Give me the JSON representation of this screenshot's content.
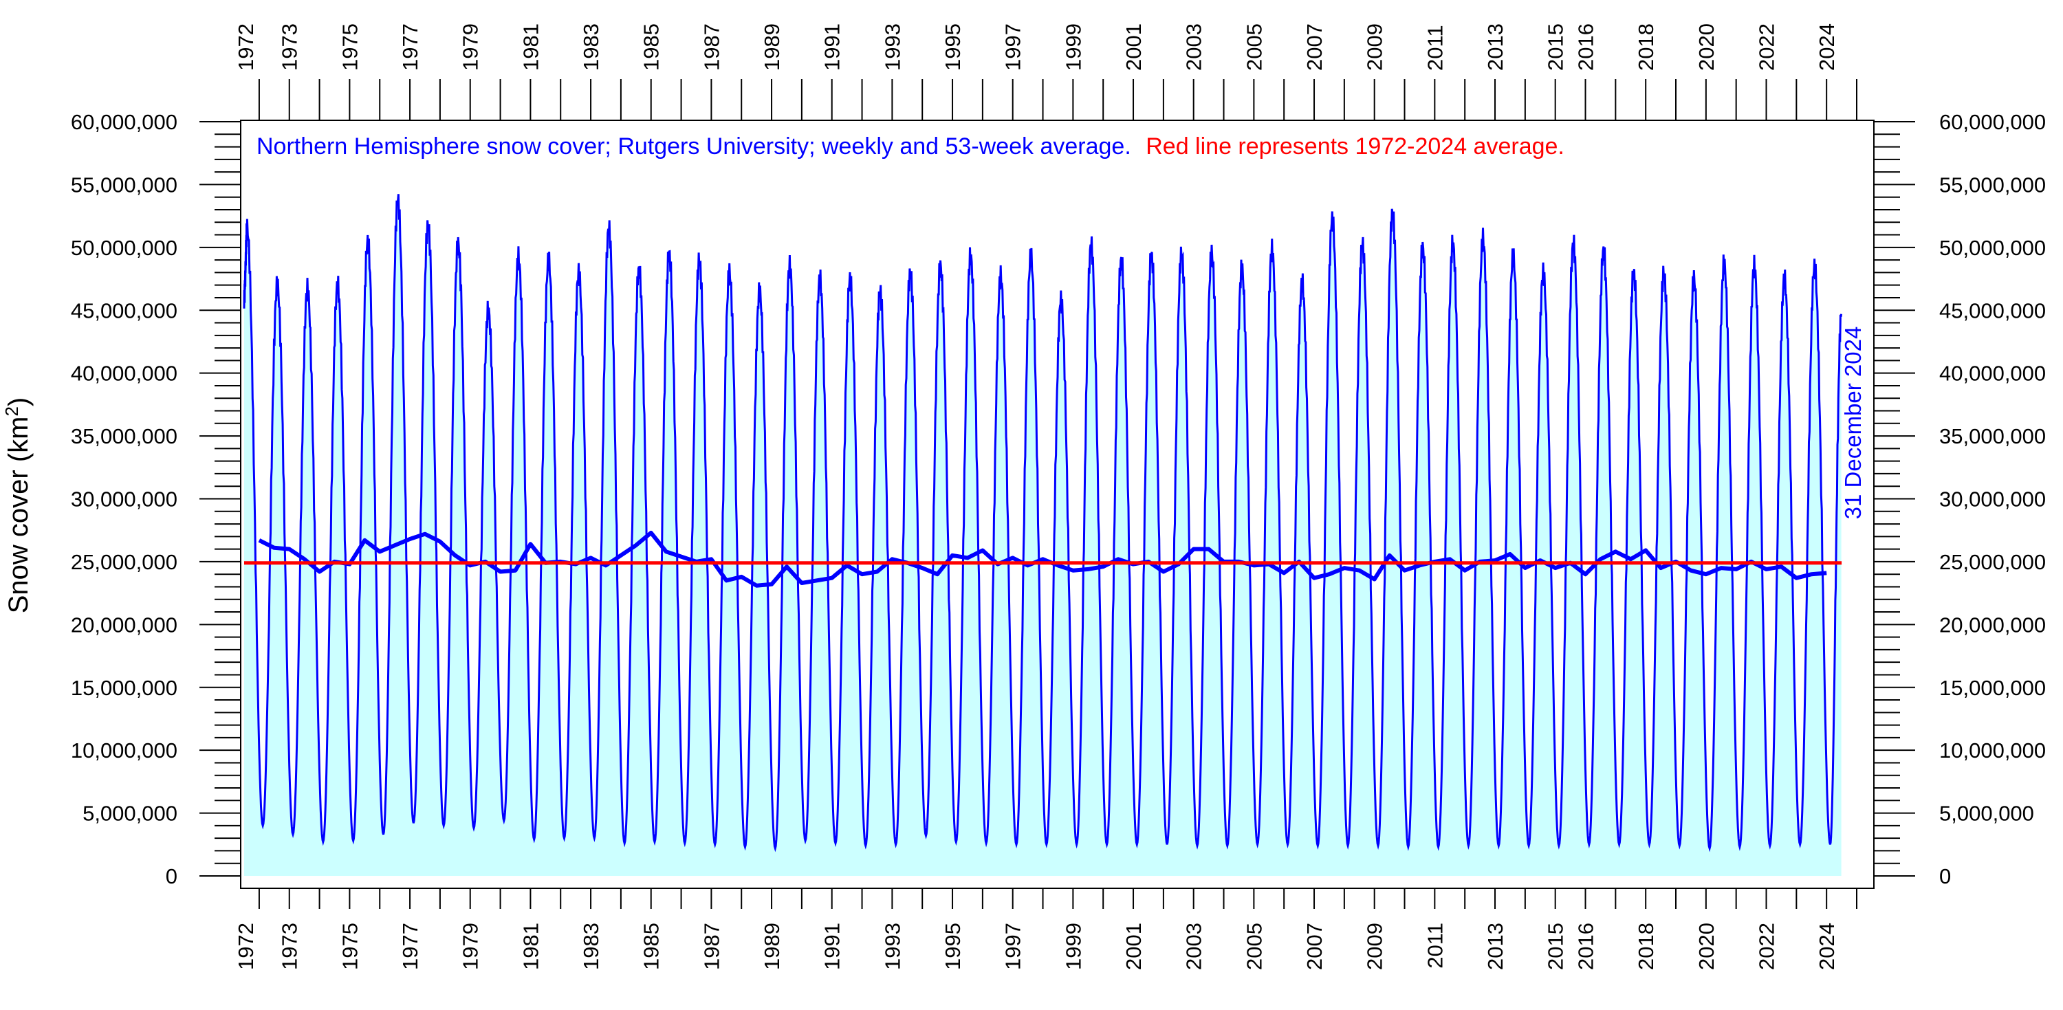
{
  "chart_data": {
    "type": "area",
    "title": "Northern Hemisphere snow cover; Rutgers University; weekly and 53-week average.",
    "subtitle": "Red line represents 1972-2024 average.",
    "ylabel": "Snow cover (km",
    "ylabel_sup": "2",
    "ylabel_close": ")",
    "end_annotation": "31 December 2024",
    "ylim": [
      0,
      60000000
    ],
    "y_tick_labels": [
      "0",
      "5,000,000",
      "10,000,000",
      "15,000,000",
      "20,000,000",
      "25,000,000",
      "30,000,000",
      "35,000,000",
      "40,000,000",
      "45,000,000",
      "50,000,000",
      "55,000,000",
      "60,000,000"
    ],
    "xlim": [
      1972.0,
      2025.5
    ],
    "x_tick_labels": [
      {
        "year": 1972.05,
        "label": "1972"
      },
      {
        "year": 1973.5,
        "label": "1973"
      },
      {
        "year": 1975.5,
        "label": "1975"
      },
      {
        "year": 1977.5,
        "label": "1977"
      },
      {
        "year": 1979.5,
        "label": "1979"
      },
      {
        "year": 1981.5,
        "label": "1981"
      },
      {
        "year": 1983.5,
        "label": "1983"
      },
      {
        "year": 1985.5,
        "label": "1985"
      },
      {
        "year": 1987.5,
        "label": "1987"
      },
      {
        "year": 1989.5,
        "label": "1989"
      },
      {
        "year": 1991.5,
        "label": "1991"
      },
      {
        "year": 1993.5,
        "label": "1993"
      },
      {
        "year": 1995.5,
        "label": "1995"
      },
      {
        "year": 1997.5,
        "label": "1997"
      },
      {
        "year": 1999.5,
        "label": "1999"
      },
      {
        "year": 2001.5,
        "label": "2001"
      },
      {
        "year": 2003.5,
        "label": "2003"
      },
      {
        "year": 2005.5,
        "label": "2005"
      },
      {
        "year": 2007.5,
        "label": "2007"
      },
      {
        "year": 2009.5,
        "label": "2009"
      },
      {
        "year": 2011.5,
        "label": "2011"
      },
      {
        "year": 2013.5,
        "label": "2013"
      },
      {
        "year": 2015.5,
        "label": "2015"
      },
      {
        "year": 2016.5,
        "label": "2016"
      },
      {
        "year": 2018.5,
        "label": "2018"
      },
      {
        "year": 2020.5,
        "label": "2020"
      },
      {
        "year": 2022.5,
        "label": "2022"
      },
      {
        "year": 2024.5,
        "label": "2024"
      }
    ],
    "grid": false,
    "weekly_annual_peaks": [
      {
        "year": 1972,
        "max": 51500000,
        "min": 4000000
      },
      {
        "year": 1973,
        "max": 47000000,
        "min": 3300000
      },
      {
        "year": 1974,
        "max": 46700000,
        "min": 2700000
      },
      {
        "year": 1975,
        "max": 47000000,
        "min": 2800000
      },
      {
        "year": 1976,
        "max": 50500000,
        "min": 3300000
      },
      {
        "year": 1977,
        "max": 53800000,
        "min": 4200000
      },
      {
        "year": 1978,
        "max": 51800000,
        "min": 4000000
      },
      {
        "year": 1979,
        "max": 50300000,
        "min": 3800000
      },
      {
        "year": 1980,
        "max": 45000000,
        "min": 4400000
      },
      {
        "year": 1981,
        "max": 49200000,
        "min": 2900000
      },
      {
        "year": 1982,
        "max": 49000000,
        "min": 3000000
      },
      {
        "year": 1983,
        "max": 48000000,
        "min": 3000000
      },
      {
        "year": 1984,
        "max": 51500000,
        "min": 2600000
      },
      {
        "year": 1985,
        "max": 48300000,
        "min": 2700000
      },
      {
        "year": 1986,
        "max": 49500000,
        "min": 2600000
      },
      {
        "year": 1987,
        "max": 49000000,
        "min": 2500000
      },
      {
        "year": 1988,
        "max": 48000000,
        "min": 2300000
      },
      {
        "year": 1989,
        "max": 46500000,
        "min": 2200000
      },
      {
        "year": 1990,
        "max": 48500000,
        "min": 2800000
      },
      {
        "year": 1991,
        "max": 47500000,
        "min": 2600000
      },
      {
        "year": 1992,
        "max": 47500000,
        "min": 2400000
      },
      {
        "year": 1993,
        "max": 46500000,
        "min": 2500000
      },
      {
        "year": 1994,
        "max": 48000000,
        "min": 3200000
      },
      {
        "year": 1995,
        "max": 48500000,
        "min": 2700000
      },
      {
        "year": 1996,
        "max": 49300000,
        "min": 2600000
      },
      {
        "year": 1997,
        "max": 47700000,
        "min": 2500000
      },
      {
        "year": 1998,
        "max": 49300000,
        "min": 2500000
      },
      {
        "year": 1999,
        "max": 45800000,
        "min": 2500000
      },
      {
        "year": 2000,
        "max": 50200000,
        "min": 2500000
      },
      {
        "year": 2001,
        "max": 49000000,
        "min": 2500000
      },
      {
        "year": 2002,
        "max": 49400000,
        "min": 2500000
      },
      {
        "year": 2003,
        "max": 49500000,
        "min": 2400000
      },
      {
        "year": 2004,
        "max": 49500000,
        "min": 2400000
      },
      {
        "year": 2005,
        "max": 48300000,
        "min": 2500000
      },
      {
        "year": 2006,
        "max": 49800000,
        "min": 2500000
      },
      {
        "year": 2007,
        "max": 47200000,
        "min": 2400000
      },
      {
        "year": 2008,
        "max": 52300000,
        "min": 2400000
      },
      {
        "year": 2009,
        "max": 50300000,
        "min": 2400000
      },
      {
        "year": 2010,
        "max": 52800000,
        "min": 2300000
      },
      {
        "year": 2011,
        "max": 50000000,
        "min": 2300000
      },
      {
        "year": 2012,
        "max": 50300000,
        "min": 2400000
      },
      {
        "year": 2013,
        "max": 50700000,
        "min": 2400000
      },
      {
        "year": 2014,
        "max": 49300000,
        "min": 2400000
      },
      {
        "year": 2015,
        "max": 48000000,
        "min": 2400000
      },
      {
        "year": 2016,
        "max": 50300000,
        "min": 2500000
      },
      {
        "year": 2017,
        "max": 49800000,
        "min": 2500000
      },
      {
        "year": 2018,
        "max": 48000000,
        "min": 2500000
      },
      {
        "year": 2019,
        "max": 48000000,
        "min": 2400000
      },
      {
        "year": 2020,
        "max": 47500000,
        "min": 2200000
      },
      {
        "year": 2021,
        "max": 48700000,
        "min": 2300000
      },
      {
        "year": 2022,
        "max": 48500000,
        "min": 2400000
      },
      {
        "year": 2023,
        "max": 47500000,
        "min": 2500000
      },
      {
        "year": 2024,
        "max": 48500000,
        "min": 2500000
      }
    ],
    "weekly_end": {
      "year": 2024.99,
      "value": 44700000
    },
    "running_average": [
      [
        1972.5,
        26700000
      ],
      [
        1973.0,
        26100000
      ],
      [
        1973.5,
        26000000
      ],
      [
        1974.0,
        25200000
      ],
      [
        1974.5,
        24200000
      ],
      [
        1975.0,
        25000000
      ],
      [
        1975.5,
        24800000
      ],
      [
        1976.0,
        26700000
      ],
      [
        1976.5,
        25800000
      ],
      [
        1977.0,
        26300000
      ],
      [
        1977.5,
        26800000
      ],
      [
        1978.0,
        27200000
      ],
      [
        1978.5,
        26600000
      ],
      [
        1979.0,
        25500000
      ],
      [
        1979.5,
        24700000
      ],
      [
        1980.0,
        25000000
      ],
      [
        1980.5,
        24200000
      ],
      [
        1981.0,
        24300000
      ],
      [
        1981.5,
        26400000
      ],
      [
        1982.0,
        24900000
      ],
      [
        1982.5,
        25000000
      ],
      [
        1983.0,
        24800000
      ],
      [
        1983.5,
        25300000
      ],
      [
        1984.0,
        24700000
      ],
      [
        1984.5,
        25500000
      ],
      [
        1985.0,
        26300000
      ],
      [
        1985.5,
        27300000
      ],
      [
        1986.0,
        25800000
      ],
      [
        1986.5,
        25400000
      ],
      [
        1987.0,
        25000000
      ],
      [
        1987.5,
        25200000
      ],
      [
        1988.0,
        23500000
      ],
      [
        1988.5,
        23800000
      ],
      [
        1989.0,
        23100000
      ],
      [
        1989.5,
        23200000
      ],
      [
        1990.0,
        24600000
      ],
      [
        1990.5,
        23300000
      ],
      [
        1991.0,
        23500000
      ],
      [
        1991.5,
        23700000
      ],
      [
        1992.0,
        24700000
      ],
      [
        1992.5,
        24000000
      ],
      [
        1993.0,
        24200000
      ],
      [
        1993.5,
        25200000
      ],
      [
        1994.0,
        24900000
      ],
      [
        1994.5,
        24500000
      ],
      [
        1995.0,
        24000000
      ],
      [
        1995.5,
        25500000
      ],
      [
        1996.0,
        25300000
      ],
      [
        1996.5,
        25900000
      ],
      [
        1997.0,
        24800000
      ],
      [
        1997.5,
        25300000
      ],
      [
        1998.0,
        24700000
      ],
      [
        1998.5,
        25200000
      ],
      [
        1999.0,
        24700000
      ],
      [
        1999.5,
        24300000
      ],
      [
        2000.0,
        24400000
      ],
      [
        2000.5,
        24600000
      ],
      [
        2001.0,
        25200000
      ],
      [
        2001.5,
        24800000
      ],
      [
        2002.0,
        25000000
      ],
      [
        2002.5,
        24200000
      ],
      [
        2003.0,
        24800000
      ],
      [
        2003.5,
        26000000
      ],
      [
        2004.0,
        26000000
      ],
      [
        2004.5,
        25000000
      ],
      [
        2005.0,
        25000000
      ],
      [
        2005.5,
        24700000
      ],
      [
        2006.0,
        24800000
      ],
      [
        2006.5,
        24100000
      ],
      [
        2007.0,
        25000000
      ],
      [
        2007.5,
        23700000
      ],
      [
        2008.0,
        24000000
      ],
      [
        2008.5,
        24500000
      ],
      [
        2009.0,
        24300000
      ],
      [
        2009.5,
        23600000
      ],
      [
        2010.0,
        25500000
      ],
      [
        2010.5,
        24300000
      ],
      [
        2011.0,
        24700000
      ],
      [
        2011.5,
        25000000
      ],
      [
        2012.0,
        25200000
      ],
      [
        2012.5,
        24300000
      ],
      [
        2013.0,
        25000000
      ],
      [
        2013.5,
        25100000
      ],
      [
        2014.0,
        25600000
      ],
      [
        2014.5,
        24500000
      ],
      [
        2015.0,
        25100000
      ],
      [
        2015.5,
        24500000
      ],
      [
        2016.0,
        24900000
      ],
      [
        2016.5,
        24000000
      ],
      [
        2017.0,
        25200000
      ],
      [
        2017.5,
        25800000
      ],
      [
        2018.0,
        25200000
      ],
      [
        2018.5,
        25900000
      ],
      [
        2019.0,
        24500000
      ],
      [
        2019.5,
        25000000
      ],
      [
        2020.0,
        24300000
      ],
      [
        2020.5,
        24000000
      ],
      [
        2021.0,
        24500000
      ],
      [
        2021.5,
        24400000
      ],
      [
        2022.0,
        25000000
      ],
      [
        2022.5,
        24400000
      ],
      [
        2023.0,
        24600000
      ],
      [
        2023.5,
        23700000
      ],
      [
        2024.0,
        24000000
      ],
      [
        2024.5,
        24100000
      ]
    ],
    "long_term_average": 24900000,
    "long_term_average_range": [
      1972.0,
      2025.0
    ],
    "colors": {
      "weekly_line": "#0000ff",
      "area_fill": "#ccffff",
      "running_average": "#0000ff",
      "long_term_average": "#ff0000",
      "note_blue": "#0000ff",
      "note_red": "#ff0000",
      "axis": "#000000"
    }
  }
}
